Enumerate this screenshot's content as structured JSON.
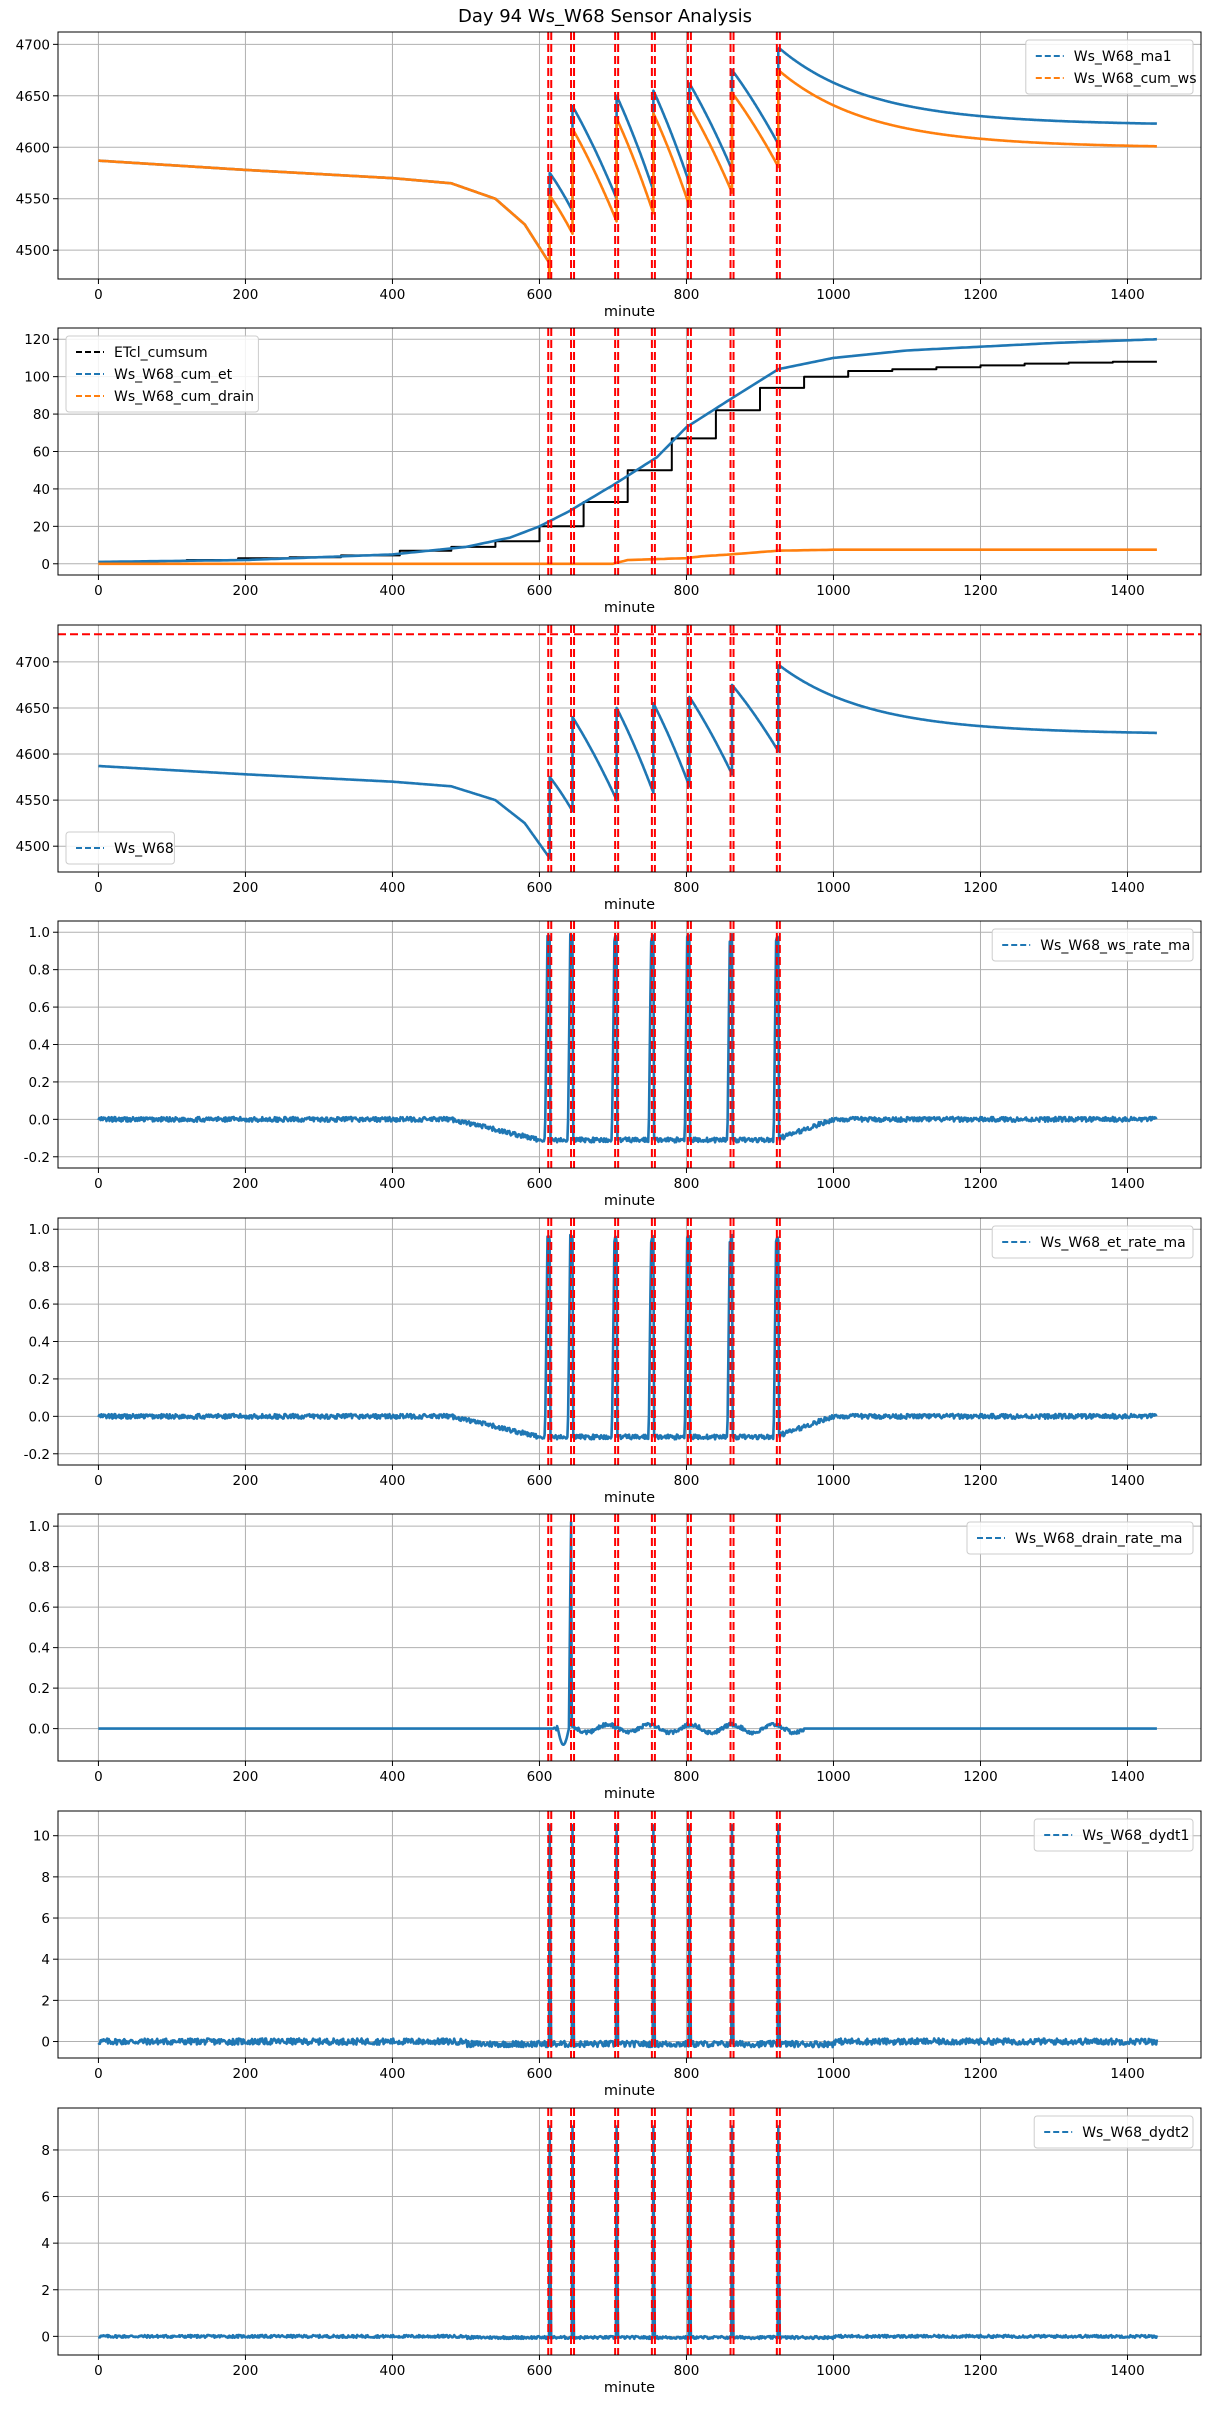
{
  "figure_title": "Day 94 Ws_W68 Sensor Analysis",
  "colors": {
    "blue": "#1f77b4",
    "orange": "#ff7f0e",
    "black": "#000000",
    "red": "#ff0000",
    "grid": "#b0b0b0"
  },
  "event_minutes": [
    614,
    645,
    705,
    755,
    804,
    862,
    925
  ],
  "chart_data": [
    {
      "type": "line",
      "xlabel": "minute",
      "xlim": [
        -55,
        1500
      ],
      "ylim": [
        4472,
        4712
      ],
      "xticks": [
        0,
        200,
        400,
        600,
        800,
        1000,
        1200,
        1400
      ],
      "yticks": [
        4500,
        4550,
        4600,
        4650,
        4700
      ],
      "hline": null,
      "legend_loc": "upper right",
      "series": [
        {
          "name": "Ws_W68_ma1",
          "color": "#1f77b4",
          "gen": "ws",
          "offset": 0
        },
        {
          "name": "Ws_W68_cum_ws",
          "color": "#ff7f0e",
          "gen": "ws",
          "offset": -22
        }
      ]
    },
    {
      "type": "line",
      "xlabel": "minute",
      "xlim": [
        -55,
        1500
      ],
      "ylim": [
        -6,
        126
      ],
      "xticks": [
        0,
        200,
        400,
        600,
        800,
        1000,
        1200,
        1400
      ],
      "yticks": [
        0,
        20,
        40,
        60,
        80,
        100,
        120
      ],
      "hline": null,
      "legend_loc": "upper left",
      "series": [
        {
          "name": "ETcl_cumsum",
          "color": "#000000",
          "gen": "etcl",
          "steps": [
            [
              0,
              1
            ],
            [
              60,
              1.5
            ],
            [
              120,
              2
            ],
            [
              190,
              3
            ],
            [
              260,
              3.5
            ],
            [
              330,
              4.5
            ],
            [
              410,
              7
            ],
            [
              480,
              9
            ],
            [
              540,
              12
            ],
            [
              600,
              20
            ],
            [
              660,
              33
            ],
            [
              720,
              50
            ],
            [
              780,
              67
            ],
            [
              840,
              82
            ],
            [
              900,
              94
            ],
            [
              960,
              100
            ],
            [
              1020,
              103
            ],
            [
              1080,
              104
            ],
            [
              1140,
              105
            ],
            [
              1200,
              106
            ],
            [
              1260,
              107
            ],
            [
              1320,
              107.5
            ],
            [
              1380,
              108
            ],
            [
              1440,
              108
            ]
          ]
        },
        {
          "name": "Ws_W68_cum_et",
          "color": "#1f77b4",
          "gen": "cumet",
          "points": [
            [
              0,
              1
            ],
            [
              200,
              2
            ],
            [
              400,
              5
            ],
            [
              500,
              9
            ],
            [
              560,
              14
            ],
            [
              600,
              20
            ],
            [
              640,
              28
            ],
            [
              700,
              42
            ],
            [
              760,
              57
            ],
            [
              800,
              73
            ],
            [
              860,
              88
            ],
            [
              925,
              104
            ],
            [
              1000,
              110
            ],
            [
              1100,
              114
            ],
            [
              1200,
              116
            ],
            [
              1300,
              118
            ],
            [
              1440,
              120
            ]
          ]
        },
        {
          "name": "Ws_W68_cum_drain",
          "color": "#ff7f0e",
          "gen": "drain",
          "points": [
            [
              0,
              0
            ],
            [
              700,
              0
            ],
            [
              720,
              2
            ],
            [
              800,
              3
            ],
            [
              820,
              4
            ],
            [
              860,
              5
            ],
            [
              925,
              7
            ],
            [
              1000,
              7.5
            ],
            [
              1440,
              7.5
            ]
          ]
        }
      ]
    },
    {
      "type": "line",
      "xlabel": "minute",
      "xlim": [
        -55,
        1500
      ],
      "ylim": [
        4472,
        4740
      ],
      "xticks": [
        0,
        200,
        400,
        600,
        800,
        1000,
        1200,
        1400
      ],
      "yticks": [
        4500,
        4550,
        4600,
        4650,
        4700
      ],
      "hline": 4730,
      "legend_loc": "lower left",
      "series": [
        {
          "name": "Ws_W68",
          "color": "#1f77b4",
          "gen": "ws",
          "offset": 0
        }
      ]
    },
    {
      "type": "line",
      "xlabel": "minute",
      "xlim": [
        -55,
        1500
      ],
      "ylim": [
        -0.26,
        1.06
      ],
      "xticks": [
        0,
        200,
        400,
        600,
        800,
        1000,
        1200,
        1400
      ],
      "yticks": [
        -0.2,
        0.0,
        0.2,
        0.4,
        0.6,
        0.8,
        1.0
      ],
      "hline": null,
      "legend_loc": "upper right",
      "series": [
        {
          "name": "Ws_W68_ws_rate_ma",
          "color": "#1f77b4",
          "gen": "rate",
          "peak": 0.97
        }
      ]
    },
    {
      "type": "line",
      "xlabel": "minute",
      "xlim": [
        -55,
        1500
      ],
      "ylim": [
        -0.26,
        1.06
      ],
      "xticks": [
        0,
        200,
        400,
        600,
        800,
        1000,
        1200,
        1400
      ],
      "yticks": [
        -0.2,
        0.0,
        0.2,
        0.4,
        0.6,
        0.8,
        1.0
      ],
      "hline": null,
      "legend_loc": "upper right",
      "series": [
        {
          "name": "Ws_W68_et_rate_ma",
          "color": "#1f77b4",
          "gen": "rate",
          "peak": 0.95
        }
      ]
    },
    {
      "type": "line",
      "xlabel": "minute",
      "xlim": [
        -55,
        1500
      ],
      "ylim": [
        -0.16,
        1.06
      ],
      "xticks": [
        0,
        200,
        400,
        600,
        800,
        1000,
        1200,
        1400
      ],
      "yticks": [
        0.0,
        0.2,
        0.4,
        0.6,
        0.8,
        1.0
      ],
      "hline": null,
      "legend_loc": "upper right",
      "series": [
        {
          "name": "Ws_W68_drain_rate_ma",
          "color": "#1f77b4",
          "gen": "drainrate"
        }
      ]
    },
    {
      "type": "line",
      "xlabel": "minute",
      "xlim": [
        -55,
        1500
      ],
      "ylim": [
        -0.8,
        11.2
      ],
      "xticks": [
        0,
        200,
        400,
        600,
        800,
        1000,
        1200,
        1400
      ],
      "yticks": [
        0,
        2,
        4,
        6,
        8,
        10
      ],
      "hline": null,
      "legend_loc": "upper right",
      "series": [
        {
          "name": "Ws_W68_dydt1",
          "color": "#1f77b4",
          "gen": "spike",
          "peak": 10.5,
          "noise": 0.15
        }
      ]
    },
    {
      "type": "line",
      "xlabel": "minute",
      "xlim": [
        -55,
        1500
      ],
      "ylim": [
        -0.8,
        9.8
      ],
      "xticks": [
        0,
        200,
        400,
        600,
        800,
        1000,
        1200,
        1400
      ],
      "yticks": [
        0,
        2,
        4,
        6,
        8
      ],
      "hline": null,
      "legend_loc": "upper right",
      "series": [
        {
          "name": "Ws_W68_dydt2",
          "color": "#1f77b4",
          "gen": "spike",
          "peak": 9.0,
          "noise": 0.06
        }
      ]
    }
  ]
}
